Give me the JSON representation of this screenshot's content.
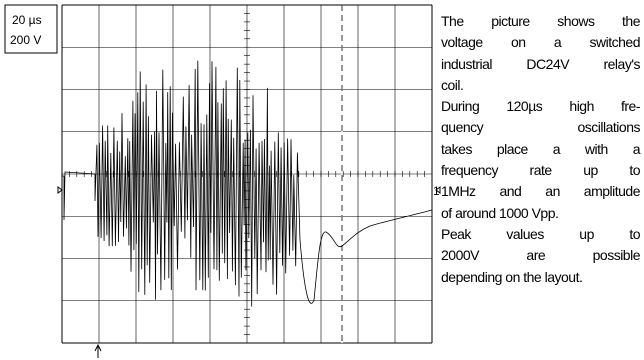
{
  "scope": {
    "timebase": "20 µs",
    "volts": "200 V",
    "channel": "1"
  },
  "description": {
    "paragraphs": [
      [
        "The picture shows the",
        "voltage on a switched",
        "industrial DC24V relay's",
        "coil."
      ],
      [
        "During 120µs high fre-",
        "quency oscillations",
        "takes place a with a",
        "frequency rate up to",
        "1MHz and an amplitude",
        "of around 1000 Vpp."
      ],
      [
        "Peak values up to",
        "2000V are possible",
        "depending on the layout."
      ]
    ]
  }
}
